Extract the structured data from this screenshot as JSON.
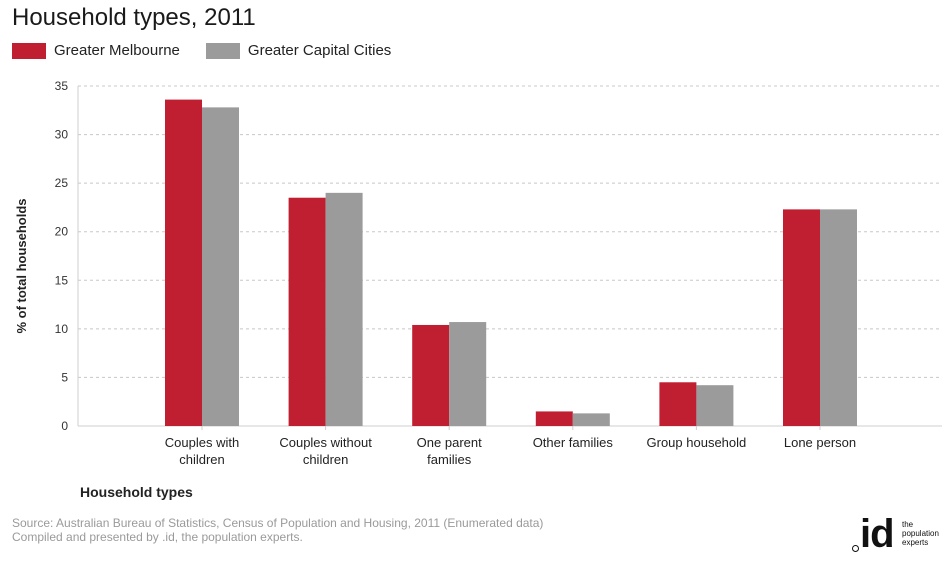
{
  "chart_data": {
    "type": "bar",
    "title": "Household types, 2011",
    "xlabel": "Household types",
    "ylabel": "% of total households",
    "ylim": [
      0,
      35
    ],
    "yticks": [
      0,
      5,
      10,
      15,
      20,
      25,
      30,
      35
    ],
    "grid": true,
    "legend_position": "top-left",
    "categories": [
      [
        "Couples with",
        "children"
      ],
      [
        "Couples without",
        "children"
      ],
      [
        "One parent",
        "families"
      ],
      [
        "Other families"
      ],
      [
        "Group household"
      ],
      [
        "Lone person"
      ]
    ],
    "series": [
      {
        "name": "Greater Melbourne",
        "color": "#c01f32",
        "values": [
          33.6,
          23.5,
          10.4,
          1.5,
          4.5,
          22.3
        ]
      },
      {
        "name": "Greater Capital Cities",
        "color": "#9b9b9b",
        "values": [
          32.8,
          24.0,
          10.7,
          1.3,
          4.2,
          22.3
        ]
      }
    ]
  },
  "footer": {
    "source": "Source: Australian Bureau of Statistics, Census of Population and Housing, 2011 (Enumerated data)",
    "compiled": "Compiled and presented by .id, the population experts."
  },
  "logo": {
    "mark": "id",
    "text_lines": [
      "the",
      "population",
      "experts"
    ]
  }
}
